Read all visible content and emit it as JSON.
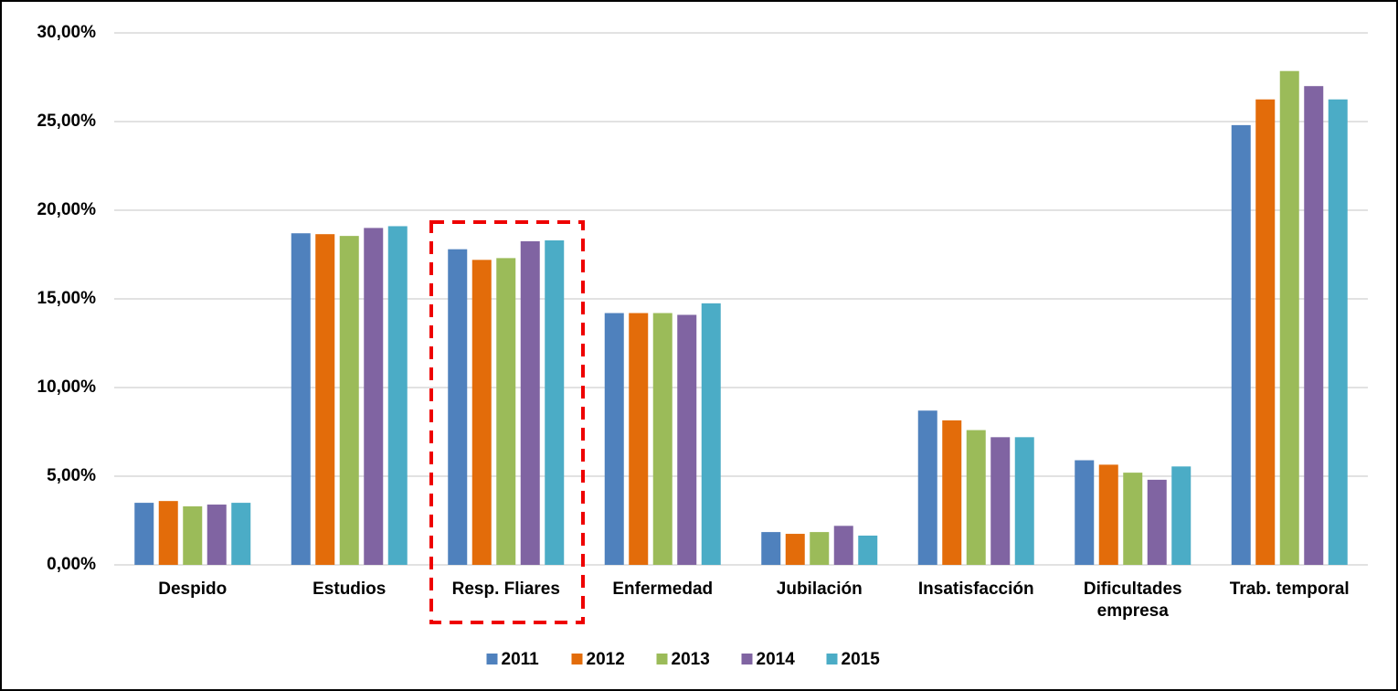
{
  "chart_data": {
    "type": "bar",
    "categories": [
      "Despido",
      "Estudios",
      "Resp. Fliares",
      "Enfermedad",
      "Jubilación",
      "Insatisfacción",
      "Dificultades empresa",
      "Trab. temporal"
    ],
    "series": [
      {
        "name": "2011",
        "color": "#4f81bd",
        "values": [
          3.5,
          18.7,
          17.8,
          14.2,
          1.85,
          8.7,
          5.9,
          24.8
        ]
      },
      {
        "name": "2012",
        "color": "#e36c0a",
        "values": [
          3.6,
          18.65,
          17.2,
          14.2,
          1.75,
          8.15,
          5.65,
          26.25
        ]
      },
      {
        "name": "2013",
        "color": "#9bbb59",
        "values": [
          3.3,
          18.55,
          17.3,
          14.2,
          1.85,
          7.6,
          5.2,
          27.85
        ]
      },
      {
        "name": "2014",
        "color": "#8064a2",
        "values": [
          3.4,
          19.0,
          18.25,
          14.1,
          2.2,
          7.2,
          4.8,
          27.0
        ]
      },
      {
        "name": "2015",
        "color": "#4bacc6",
        "values": [
          3.5,
          19.1,
          18.3,
          14.75,
          1.65,
          7.2,
          5.55,
          26.25
        ]
      }
    ],
    "ylim": [
      0,
      30
    ],
    "yticks": [
      {
        "value": 0,
        "label": "0,00%"
      },
      {
        "value": 5,
        "label": "5,00%"
      },
      {
        "value": 10,
        "label": "10,00%"
      },
      {
        "value": 15,
        "label": "15,00%"
      },
      {
        "value": 20,
        "label": "20,00%"
      },
      {
        "value": 25,
        "label": "25,00%"
      },
      {
        "value": 30,
        "label": "30,00%"
      }
    ],
    "grid": true,
    "legend": "bottom"
  }
}
